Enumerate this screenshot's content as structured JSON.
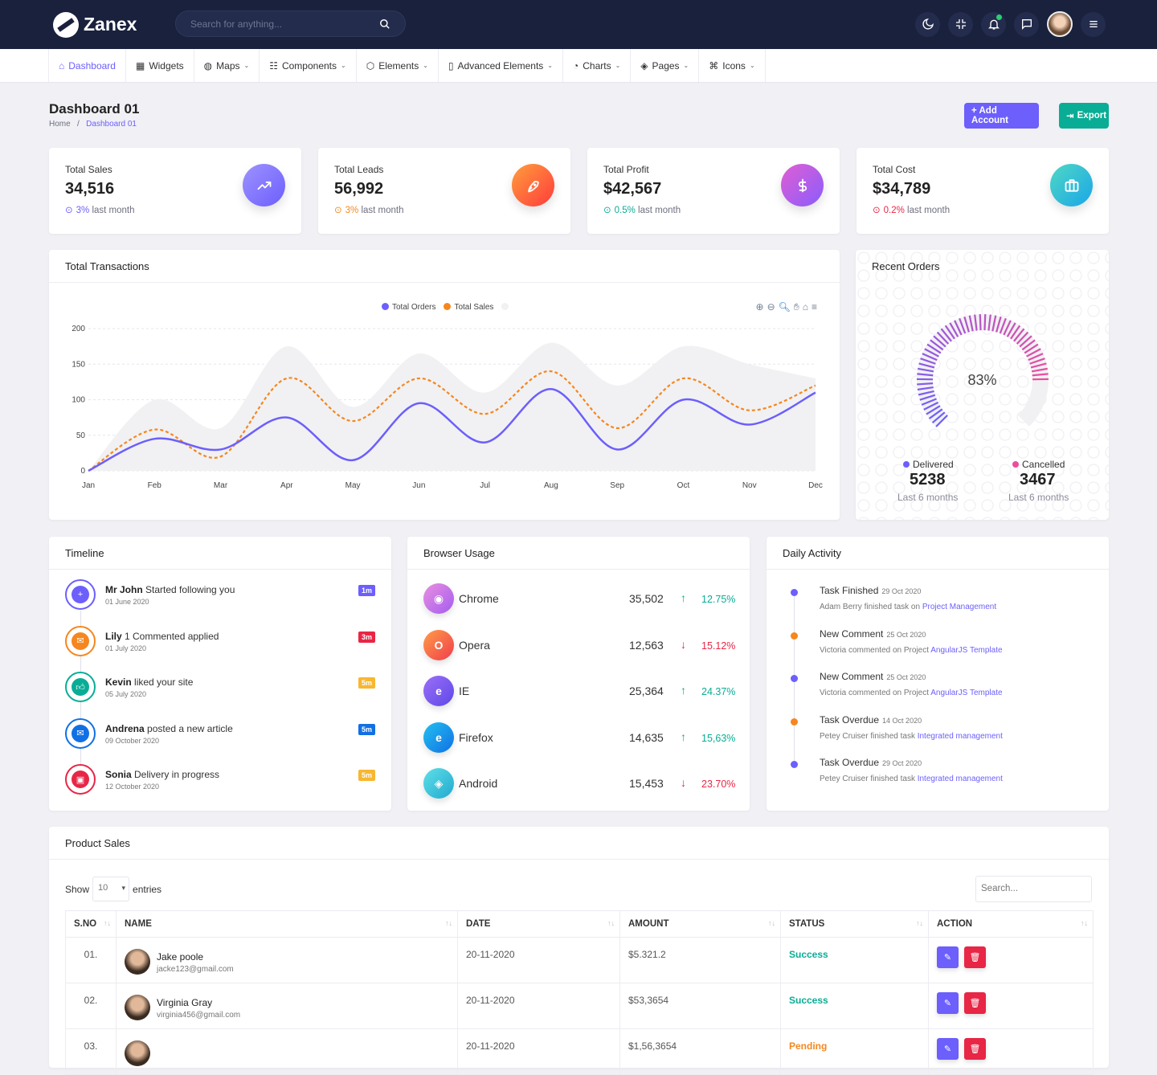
{
  "brand": {
    "name": "Zanex"
  },
  "search": {
    "placeholder": "Search for anything..."
  },
  "topbar": {
    "icons": [
      "moon-icon",
      "fullscreen-icon",
      "bell-icon",
      "chat-icon",
      "avatar",
      "menu-icon"
    ]
  },
  "menu": [
    {
      "label": "Dashboard",
      "icon": "home-icon",
      "active": true,
      "dropdown": false
    },
    {
      "label": "Widgets",
      "icon": "grid-icon",
      "dropdown": false
    },
    {
      "label": "Maps",
      "icon": "globe-icon",
      "dropdown": true
    },
    {
      "label": "Components",
      "icon": "database-icon",
      "dropdown": true
    },
    {
      "label": "Elements",
      "icon": "box-icon",
      "dropdown": true
    },
    {
      "label": "Advanced Elements",
      "icon": "file-icon",
      "dropdown": true
    },
    {
      "label": "Charts",
      "icon": "pie-chart-icon",
      "dropdown": true
    },
    {
      "label": "Pages",
      "icon": "layers-icon",
      "dropdown": true
    },
    {
      "label": "Icons",
      "icon": "command-icon",
      "dropdown": true
    }
  ],
  "page": {
    "title": "Dashboard 01",
    "breadcrumb_home": "Home",
    "breadcrumb_sep": "/",
    "breadcrumb_current": "Dashboard 01",
    "add_account": "+ Add Account",
    "export": "Export"
  },
  "stats": [
    {
      "title": "Total Sales",
      "value": "34,516",
      "pct": "3%",
      "suffix": " last month",
      "trend": "up",
      "color": "#6c5ffc",
      "icon": "trending-up-icon"
    },
    {
      "title": "Total Leads",
      "value": "56,992",
      "pct": "3%",
      "suffix": " last month",
      "trend": "up",
      "color": "#f5871e",
      "icon": "rocket-icon"
    },
    {
      "title": "Total Profit",
      "value": "$42,567",
      "pct": "0.5%",
      "suffix": " last month",
      "trend": "up",
      "color": "#09ad95",
      "icon": "dollar-icon"
    },
    {
      "title": "Total Cost",
      "value": "$34,789",
      "pct": "0.2%",
      "suffix": " last month",
      "trend": "down",
      "color": "#e82646",
      "icon": "briefcase-icon"
    }
  ],
  "transactions": {
    "title": "Total Transactions"
  },
  "chart_data": {
    "type": "area",
    "categories": [
      "Jan",
      "Feb",
      "Mar",
      "Apr",
      "May",
      "Jun",
      "Jul",
      "Aug",
      "Sep",
      "Oct",
      "Nov",
      "Dec"
    ],
    "series": [
      {
        "name": "Total Orders",
        "color": "#6c5ffc",
        "values": [
          0,
          45,
          30,
          75,
          15,
          95,
          40,
          115,
          30,
          100,
          65,
          110
        ]
      },
      {
        "name": "Total Sales",
        "color": "#f5871e",
        "values": [
          0,
          58,
          20,
          130,
          70,
          130,
          80,
          140,
          60,
          130,
          85,
          120
        ]
      },
      {
        "name": "",
        "color": "#f1f1f3",
        "values": [
          0,
          100,
          60,
          175,
          90,
          165,
          110,
          180,
          120,
          175,
          150,
          130
        ]
      }
    ],
    "ylim": [
      0,
      200
    ],
    "yticks": [
      0,
      50,
      100,
      150,
      200
    ],
    "legend_position": "top-center",
    "grid": true
  },
  "recent_orders": {
    "title": "Recent Orders",
    "percent": "83%",
    "gauge_fraction": 0.83,
    "delivered": {
      "label": "Delivered",
      "value": "5238",
      "sub": "Last 6 months"
    },
    "cancelled": {
      "label": "Cancelled",
      "value": "3467",
      "sub": "Last 6 months"
    }
  },
  "timeline": {
    "title": "Timeline",
    "items": [
      {
        "name": "Mr John",
        "text": " Started following you",
        "date": "01 June 2020",
        "badge": "1m",
        "color": "#6c5ffc",
        "badge_color": "#6c5ffc",
        "icon": "user-plus-icon"
      },
      {
        "name": "Lily",
        "text": " 1 Commented applied",
        "date": "01 July 2020",
        "badge": "3m",
        "color": "#f5871e",
        "badge_color": "#e82646",
        "icon": "comment-icon"
      },
      {
        "name": "Kevin",
        "text": " liked your site",
        "date": "05 July 2020",
        "badge": "5m",
        "color": "#09ad95",
        "badge_color": "#f7b731",
        "icon": "thumbs-up-icon"
      },
      {
        "name": "Andrena",
        "text": " posted a new article",
        "date": "09 October 2020",
        "badge": "5m",
        "color": "#1170e4",
        "badge_color": "#1170e4",
        "icon": "mail-icon"
      },
      {
        "name": "Sonia",
        "text": " Delivery in progress",
        "date": "12 October 2020",
        "badge": "5m",
        "color": "#e82646",
        "badge_color": "#f7b731",
        "icon": "bag-icon"
      }
    ]
  },
  "browser_usage": {
    "title": "Browser Usage",
    "rows": [
      {
        "name": "Chrome",
        "value": "35,502",
        "pct": "12.75%",
        "trend": "up",
        "color": "#c86ee0",
        "icon": "chrome-icon"
      },
      {
        "name": "Opera",
        "value": "12,563",
        "pct": "15.12%",
        "trend": "down",
        "color": "#f2643b",
        "icon": "opera-icon"
      },
      {
        "name": "IE",
        "value": "25,364",
        "pct": "24.37%",
        "trend": "up",
        "color": "#7b5ff0",
        "icon": "ie-icon"
      },
      {
        "name": "Firefox",
        "value": "14,635",
        "pct": "15,63%",
        "trend": "up",
        "color": "#1aa6e8",
        "icon": "edge-icon"
      },
      {
        "name": "Android",
        "value": "15,453",
        "pct": "23.70%",
        "trend": "down",
        "color": "#2ec4d6",
        "icon": "android-icon"
      }
    ]
  },
  "daily_activity": {
    "title": "Daily Activity",
    "items": [
      {
        "title": "Task Finished",
        "date": "29 Oct 2020",
        "desc": "Adam Berry finished task on ",
        "link": "Project Management",
        "color": "#6c5ffc"
      },
      {
        "title": "New Comment",
        "date": "25 Oct 2020",
        "desc": "Victoria commented on Project ",
        "link": "AngularJS Template",
        "color": "#f5871e"
      },
      {
        "title": "New Comment",
        "date": "25 Oct 2020",
        "desc": "Victoria commented on Project ",
        "link": "AngularJS Template",
        "color": "#6c5ffc"
      },
      {
        "title": "Task Overdue",
        "date": "14 Oct 2020",
        "desc": "Petey Cruiser finished task ",
        "link": "Integrated management",
        "color": "#f5871e"
      },
      {
        "title": "Task Overdue",
        "date": "29 Oct 2020",
        "desc": "Petey Cruiser finished task ",
        "link": "Integrated management",
        "color": "#6c5ffc"
      }
    ]
  },
  "product_sales": {
    "title": "Product Sales",
    "show": "Show",
    "entries_value": "10",
    "entries": "entries",
    "search_placeholder": "Search...",
    "columns": [
      "S.NO",
      "NAME",
      "DATE",
      "AMOUNT",
      "STATUS",
      "ACTION"
    ],
    "rows": [
      {
        "sno": "01.",
        "name": "Jake poole",
        "email": "jacke123@gmail.com",
        "date": "20-11-2020",
        "amount": "$5.321.2",
        "status": "Success"
      },
      {
        "sno": "02.",
        "name": "Virginia Gray",
        "email": "virginia456@gmail.com",
        "date": "20-11-2020",
        "amount": "$53,3654",
        "status": "Success"
      },
      {
        "sno": "03.",
        "name": "",
        "email": "",
        "date": "20-11-2020",
        "amount": "$1,56,3654",
        "status": "Pending"
      }
    ]
  }
}
